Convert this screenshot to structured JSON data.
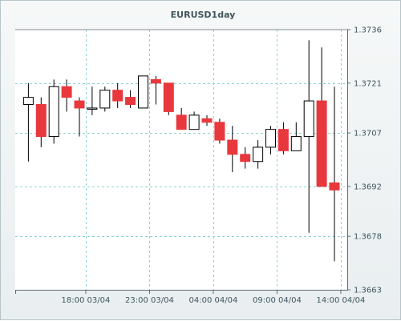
{
  "chart_data": {
    "type": "candlestick",
    "title": "EURUSD1day",
    "y_tick_labels": [
      "1.3736",
      "1.3721",
      "1.3707",
      "1.3692",
      "1.3678",
      "1.3663"
    ],
    "y_ticks": [
      1.3736,
      1.3721,
      1.3707,
      1.3692,
      1.3678,
      1.3663
    ],
    "ylim": [
      1.3663,
      1.3736
    ],
    "x_tick_labels": [
      "18:00 03/04",
      "23:00 03/04",
      "04:00 04/04",
      "09:00 04/04",
      "14:00 04/04"
    ],
    "x_tick_indices": [
      4.5,
      9.5,
      14.5,
      19.5,
      24.5
    ],
    "grid": true,
    "colors": {
      "up_body": "#ffffff",
      "down_body": "#e8383d",
      "wick": "#000000",
      "grid": "#8fd3d3"
    },
    "candles": [
      {
        "open": 1.3715,
        "high": 1.3721,
        "low": 1.3699,
        "close": 1.3717
      },
      {
        "open": 1.3715,
        "high": 1.3717,
        "low": 1.3703,
        "close": 1.3706
      },
      {
        "open": 1.3706,
        "high": 1.3722,
        "low": 1.3704,
        "close": 1.372
      },
      {
        "open": 1.372,
        "high": 1.3722,
        "low": 1.3713,
        "close": 1.3717
      },
      {
        "open": 1.3716,
        "high": 1.3717,
        "low": 1.3706,
        "close": 1.3714
      },
      {
        "open": 1.3714,
        "high": 1.372,
        "low": 1.3712,
        "close": 1.3714
      },
      {
        "open": 1.3714,
        "high": 1.372,
        "low": 1.3713,
        "close": 1.3719
      },
      {
        "open": 1.3719,
        "high": 1.3721,
        "low": 1.3714,
        "close": 1.3716
      },
      {
        "open": 1.3717,
        "high": 1.3719,
        "low": 1.3714,
        "close": 1.3715
      },
      {
        "open": 1.3714,
        "high": 1.3723,
        "low": 1.3714,
        "close": 1.3723
      },
      {
        "open": 1.3722,
        "high": 1.3723,
        "low": 1.3715,
        "close": 1.3721
      },
      {
        "open": 1.3721,
        "high": 1.3721,
        "low": 1.3712,
        "close": 1.3713
      },
      {
        "open": 1.3712,
        "high": 1.3714,
        "low": 1.3708,
        "close": 1.3708
      },
      {
        "open": 1.3708,
        "high": 1.3713,
        "low": 1.3708,
        "close": 1.3712
      },
      {
        "open": 1.3711,
        "high": 1.3712,
        "low": 1.3709,
        "close": 1.371
      },
      {
        "open": 1.371,
        "high": 1.3711,
        "low": 1.3704,
        "close": 1.3705
      },
      {
        "open": 1.3705,
        "high": 1.3709,
        "low": 1.3696,
        "close": 1.3701
      },
      {
        "open": 1.3701,
        "high": 1.3703,
        "low": 1.3697,
        "close": 1.3699
      },
      {
        "open": 1.3699,
        "high": 1.3705,
        "low": 1.3697,
        "close": 1.3703
      },
      {
        "open": 1.3703,
        "high": 1.3709,
        "low": 1.3701,
        "close": 1.3708
      },
      {
        "open": 1.3708,
        "high": 1.371,
        "low": 1.3701,
        "close": 1.3702
      },
      {
        "open": 1.3702,
        "high": 1.371,
        "low": 1.3702,
        "close": 1.3706
      },
      {
        "open": 1.3706,
        "high": 1.3733,
        "low": 1.3679,
        "close": 1.3716
      },
      {
        "open": 1.3716,
        "high": 1.3731,
        "low": 1.3692,
        "close": 1.3692
      },
      {
        "open": 1.3693,
        "high": 1.372,
        "low": 1.3671,
        "close": 1.3691
      }
    ]
  }
}
